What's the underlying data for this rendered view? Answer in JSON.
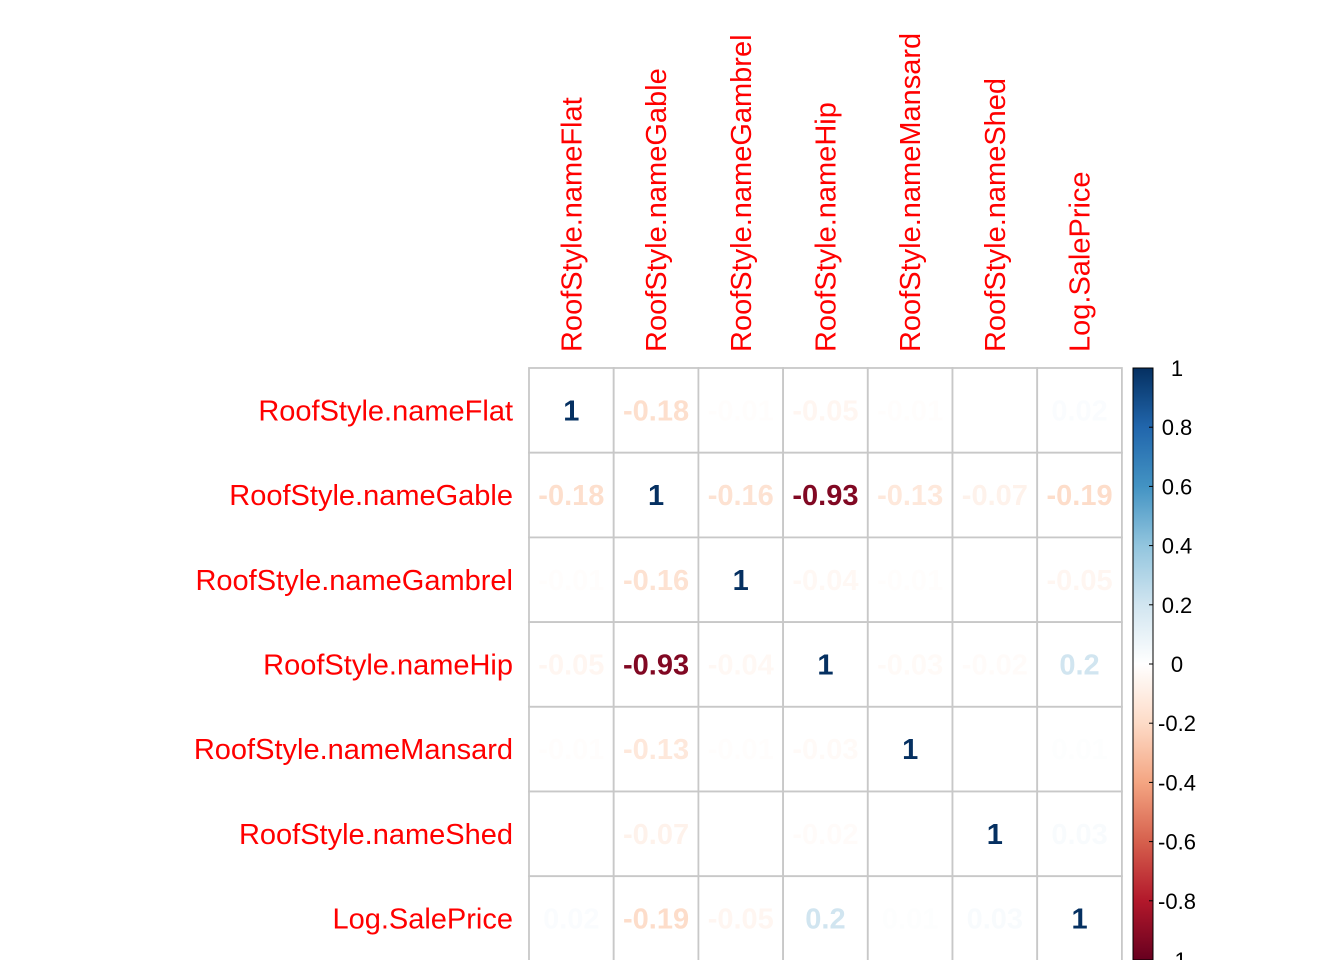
{
  "chart_data": {
    "type": "heatmap",
    "variables": [
      "RoofStyle.nameFlat",
      "RoofStyle.nameGable",
      "RoofStyle.nameGambrel",
      "RoofStyle.nameHip",
      "RoofStyle.nameMansard",
      "RoofStyle.nameShed",
      "Log.SalePrice"
    ],
    "matrix": [
      [
        1,
        -0.18,
        -0.01,
        -0.05,
        -0.01,
        0,
        0.02
      ],
      [
        -0.18,
        1,
        -0.16,
        -0.93,
        -0.13,
        -0.07,
        -0.19
      ],
      [
        -0.01,
        -0.16,
        1,
        -0.04,
        -0.01,
        0,
        -0.05
      ],
      [
        -0.05,
        -0.93,
        -0.04,
        1,
        -0.03,
        -0.02,
        0.2
      ],
      [
        -0.01,
        -0.13,
        -0.01,
        -0.03,
        1,
        0,
        0.01
      ],
      [
        0,
        -0.07,
        0,
        -0.02,
        0,
        1,
        0.03
      ],
      [
        0.02,
        -0.19,
        -0.05,
        0.2,
        0.01,
        0.03,
        1
      ]
    ],
    "colorbar_ticks": [
      "1",
      "0.8",
      "0.6",
      "0.4",
      "0.2",
      "0",
      "-0.2",
      "-0.4",
      "-0.6",
      "-0.8",
      "-1"
    ],
    "range": [
      -1,
      1
    ],
    "label_color": "#ff0000",
    "grid_color": "#c8c8c8",
    "palette": [
      "#67001f",
      "#b2182b",
      "#d6604d",
      "#f4a582",
      "#fddbc7",
      "#ffffff",
      "#d1e5f0",
      "#92c5de",
      "#4393c3",
      "#2166ac",
      "#053061"
    ]
  }
}
